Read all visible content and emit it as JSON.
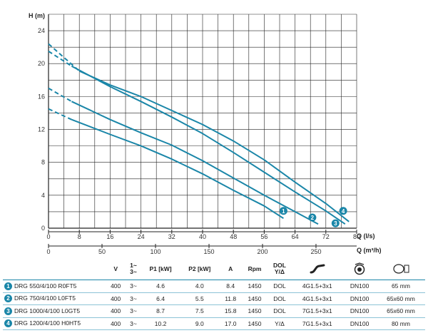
{
  "chart_data": {
    "type": "line",
    "ylabel": "H (m)",
    "xlabel": "Q (l/s)",
    "xlabel_secondary": "Q (m³/h)",
    "xlim": [
      0,
      80
    ],
    "ylim": [
      0,
      26
    ],
    "x_ticks": [
      "0",
      "8",
      "16",
      "24",
      "32",
      "40",
      "48",
      "56",
      "64",
      "72",
      "80"
    ],
    "y_ticks": [
      "0",
      "4",
      "8",
      "12",
      "16",
      "20",
      "24"
    ],
    "x2_ticks": [
      "0",
      "50",
      "100",
      "150",
      "200",
      "250"
    ],
    "x2_tick_values_ls": [
      0,
      13.89,
      27.78,
      41.67,
      55.56,
      69.44
    ],
    "grid": true,
    "series": [
      {
        "name": "1",
        "dashed": [
          [
            0,
            14.5
          ],
          [
            6,
            13.2
          ]
        ],
        "values": [
          [
            6,
            13.2
          ],
          [
            16,
            11.4
          ],
          [
            24,
            10
          ],
          [
            32,
            8.4
          ],
          [
            40,
            6.6
          ],
          [
            48,
            4.6
          ],
          [
            56,
            2.7
          ],
          [
            61,
            1.2
          ]
        ]
      },
      {
        "name": "2",
        "dashed": [
          [
            0,
            17
          ],
          [
            6,
            15.4
          ]
        ],
        "values": [
          [
            6,
            15.4
          ],
          [
            16,
            13.2
          ],
          [
            24,
            11.6
          ],
          [
            32,
            10.1
          ],
          [
            40,
            8.2
          ],
          [
            48,
            6.1
          ],
          [
            56,
            4
          ],
          [
            64,
            2
          ],
          [
            70,
            0.5
          ]
        ]
      },
      {
        "name": "3",
        "dashed": [
          [
            0,
            21.5
          ],
          [
            6,
            19.7
          ]
        ],
        "values": [
          [
            6,
            19.7
          ],
          [
            16,
            17.2
          ],
          [
            24,
            15.4
          ],
          [
            32,
            13.5
          ],
          [
            40,
            11.5
          ],
          [
            48,
            9.2
          ],
          [
            56,
            6.8
          ],
          [
            64,
            4.4
          ],
          [
            72,
            2.1
          ],
          [
            77,
            0.5
          ]
        ]
      },
      {
        "name": "4",
        "dashed": [
          [
            0,
            22.4
          ],
          [
            8,
            19.1
          ]
        ],
        "values": [
          [
            8,
            19.1
          ],
          [
            16,
            17.4
          ],
          [
            24,
            16
          ],
          [
            32,
            14.3
          ],
          [
            40,
            12.6
          ],
          [
            48,
            10.6
          ],
          [
            56,
            8.3
          ],
          [
            64,
            5.6
          ],
          [
            72,
            3
          ],
          [
            78,
            0.8
          ]
        ]
      }
    ],
    "point_labels": [
      {
        "label": "1",
        "x": 61,
        "y": 2.1
      },
      {
        "label": "2",
        "x": 68.5,
        "y": 1.3
      },
      {
        "label": "3",
        "x": 74.5,
        "y": 0.6
      },
      {
        "label": "4",
        "x": 76.5,
        "y": 2.1
      }
    ],
    "colors": {
      "curve": "#1a86a8",
      "grid": "#222222"
    }
  },
  "spec_table": {
    "headers": {
      "model": "",
      "v": "V",
      "phase_top": "1~",
      "phase_bottom": "3~",
      "p1": "P1 [kW]",
      "p2": "P2 [kW]",
      "a": "A",
      "rpm": "Rpm",
      "dol_top": "DOL",
      "dol_bottom": "Y/Δ",
      "cable_icon": "cable-icon",
      "outlet_icon": "pump-outlet-icon",
      "size_icon": "dimension-icon"
    },
    "rows": [
      {
        "num": "1",
        "model": "DRG 550/4/100 R0FT5",
        "v": "400",
        "phase": "3~",
        "p1": "4.6",
        "p2": "4.0",
        "a": "8.4",
        "rpm": "1450",
        "start": "DOL",
        "cable": "4G1.5+3x1",
        "outlet": "DN100",
        "size": "65 mm"
      },
      {
        "num": "2",
        "model": "DRG 750/4/100 L0FT5",
        "v": "400",
        "phase": "3~",
        "p1": "6.4",
        "p2": "5.5",
        "a": "11.8",
        "rpm": "1450",
        "start": "DOL",
        "cable": "4G1.5+3x1",
        "outlet": "DN100",
        "size": "65x60 mm"
      },
      {
        "num": "3",
        "model": "DRG 1000/4/100 L0GT5",
        "v": "400",
        "phase": "3~",
        "p1": "8.7",
        "p2": "7.5",
        "a": "15.8",
        "rpm": "1450",
        "start": "DOL",
        "cable": "7G1.5+3x1",
        "outlet": "DN100",
        "size": "65x60 mm"
      },
      {
        "num": "4",
        "model": "DRG 1200/4/100 H0HT5",
        "v": "400",
        "phase": "3~",
        "p1": "10.2",
        "p2": "9.0",
        "a": "17.0",
        "rpm": "1450",
        "start": "Y/Δ",
        "cable": "7G1.5+3x1",
        "outlet": "DN100",
        "size": "80 mm"
      }
    ]
  }
}
